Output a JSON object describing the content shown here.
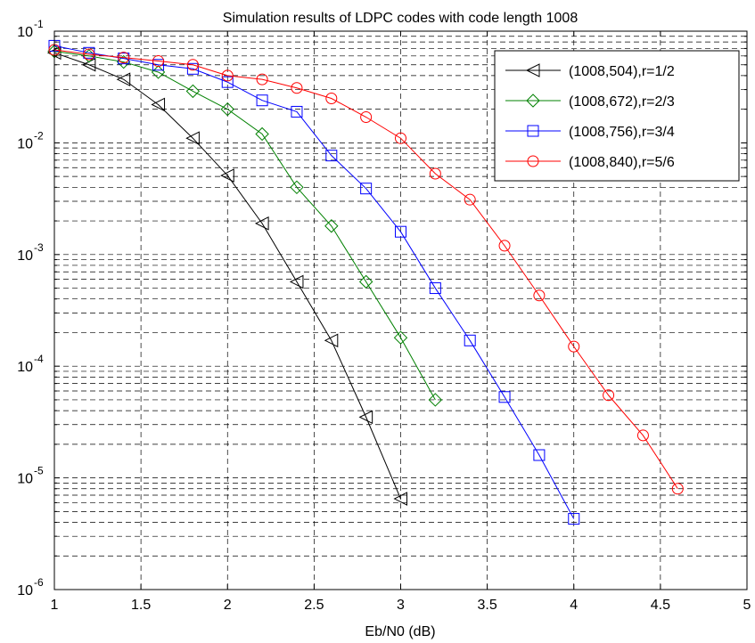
{
  "chart_data": {
    "type": "line",
    "title": "Simulation results of LDPC codes with code length 1008",
    "xlabel": "Eb/N0 (dB)",
    "ylabel": "",
    "xlim": [
      1,
      5
    ],
    "ylim": [
      1e-06,
      0.1
    ],
    "yscale": "log",
    "grid": true,
    "legend_position": "top-right",
    "x_ticks": [
      {
        "value": 1,
        "label": "1"
      },
      {
        "value": 1.5,
        "label": "1.5"
      },
      {
        "value": 2,
        "label": "2"
      },
      {
        "value": 2.5,
        "label": "2.5"
      },
      {
        "value": 3,
        "label": "3"
      },
      {
        "value": 3.5,
        "label": "3.5"
      },
      {
        "value": 4,
        "label": "4"
      },
      {
        "value": 4.5,
        "label": "4.5"
      },
      {
        "value": 5,
        "label": "5"
      }
    ],
    "y_ticks": [
      {
        "value": 0.1,
        "base": "10",
        "exp": "-1"
      },
      {
        "value": 0.01,
        "base": "10",
        "exp": "-2"
      },
      {
        "value": 0.001,
        "base": "10",
        "exp": "-3"
      },
      {
        "value": 0.0001,
        "base": "10",
        "exp": "-4"
      },
      {
        "value": 1e-05,
        "base": "10",
        "exp": "-5"
      },
      {
        "value": 1e-06,
        "base": "10",
        "exp": "-6"
      }
    ],
    "series": [
      {
        "name": "(1008,504),r=1/2",
        "color": "#000000",
        "marker": "triangle-left",
        "x": [
          1,
          1.2,
          1.4,
          1.6,
          1.8,
          2,
          2.2,
          2.4,
          2.6,
          2.8,
          3
        ],
        "y": [
          0.064,
          0.05,
          0.037,
          0.022,
          0.011,
          0.0051,
          0.0019,
          0.00057,
          0.00017,
          3.5e-05,
          6.5e-06
        ]
      },
      {
        "name": "(1008,672),r=2/3",
        "color": "#008000",
        "marker": "diamond",
        "x": [
          1,
          1.2,
          1.4,
          1.6,
          1.8,
          2,
          2.2,
          2.4,
          2.6,
          2.8,
          3,
          3.2
        ],
        "y": [
          0.066,
          0.06,
          0.053,
          0.043,
          0.029,
          0.02,
          0.012,
          0.004,
          0.0018,
          0.00057,
          0.00018,
          5e-05
        ]
      },
      {
        "name": "(1008,756),r=3/4",
        "color": "#0000ff",
        "marker": "square",
        "x": [
          1,
          1.2,
          1.4,
          1.6,
          1.8,
          2,
          2.2,
          2.4,
          2.6,
          2.8,
          3,
          3.2,
          3.4,
          3.6,
          3.8,
          4
        ],
        "y": [
          0.074,
          0.064,
          0.057,
          0.05,
          0.046,
          0.035,
          0.024,
          0.019,
          0.0077,
          0.0039,
          0.0016,
          0.0005,
          0.00017,
          5.3e-05,
          1.6e-05,
          4.3e-06
        ]
      },
      {
        "name": "(1008,840),r=5/6",
        "color": "#ff0000",
        "marker": "circle",
        "x": [
          1,
          1.2,
          1.4,
          1.6,
          1.8,
          2,
          2.2,
          2.4,
          2.6,
          2.8,
          3,
          3.2,
          3.4,
          3.6,
          3.8,
          4,
          4.2,
          4.4,
          4.6
        ],
        "y": [
          0.068,
          0.062,
          0.058,
          0.054,
          0.05,
          0.04,
          0.037,
          0.031,
          0.025,
          0.017,
          0.011,
          0.0053,
          0.0031,
          0.0012,
          0.00043,
          0.00015,
          5.5e-05,
          2.4e-05,
          8e-06
        ]
      }
    ]
  }
}
